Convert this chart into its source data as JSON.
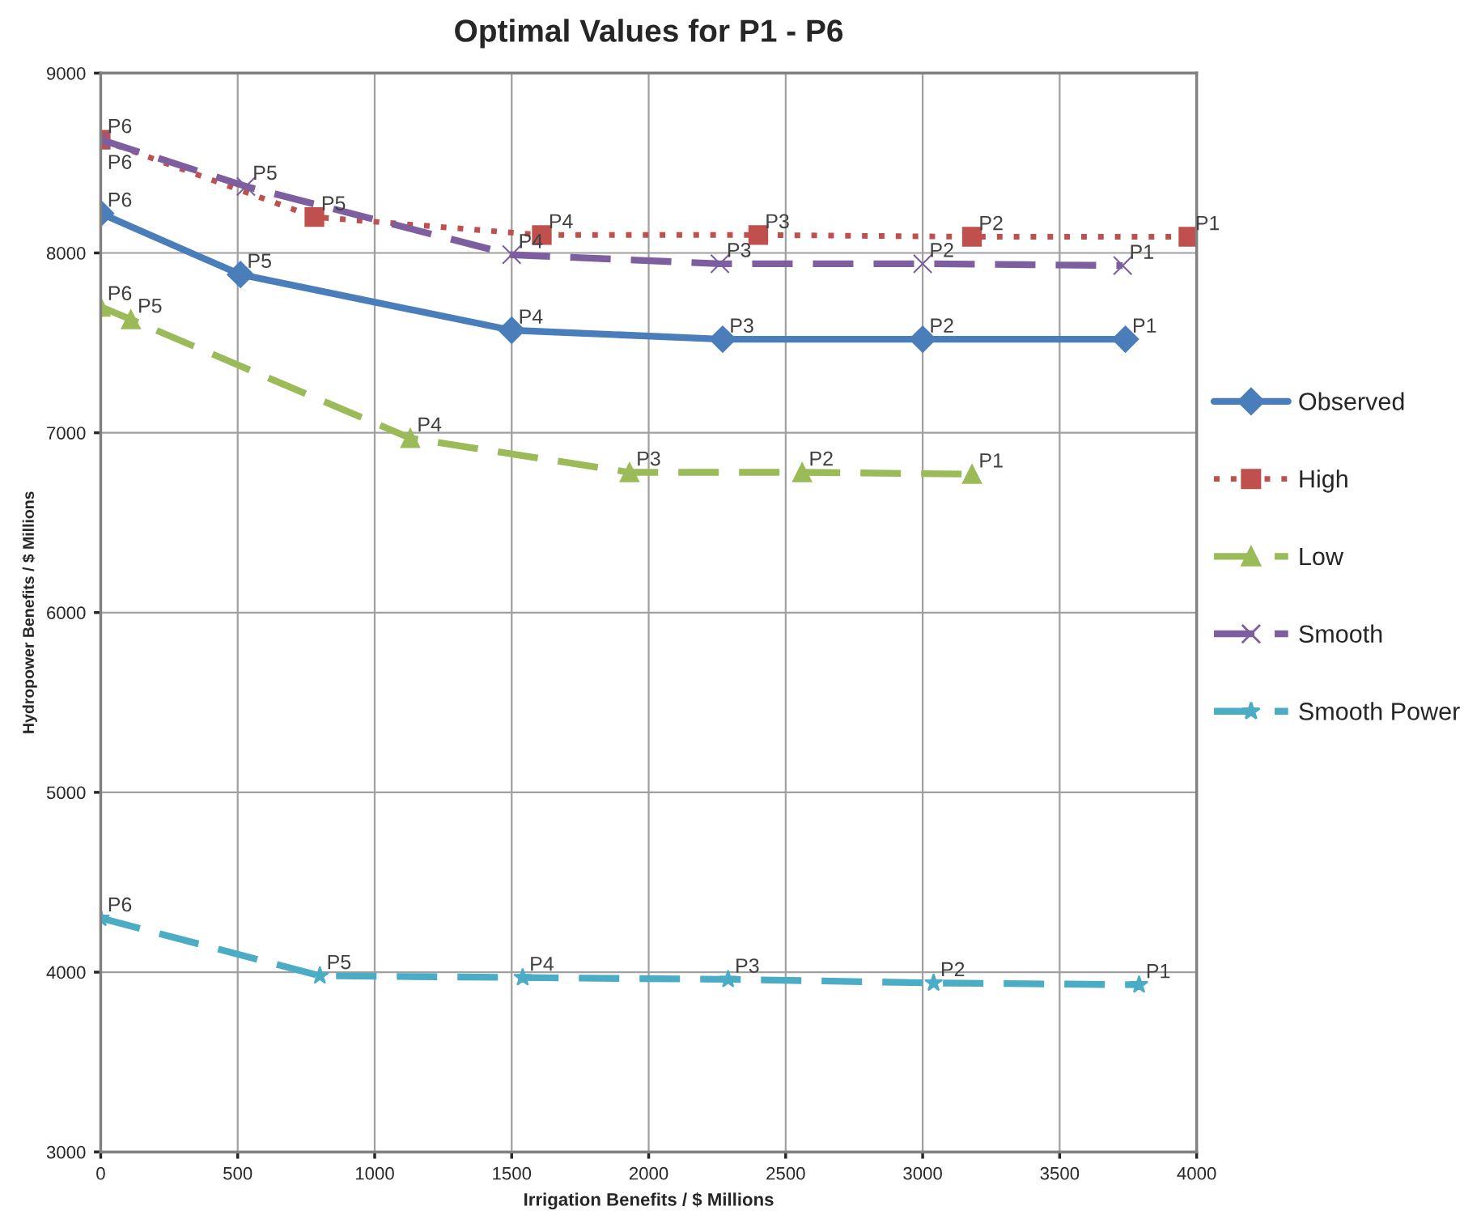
{
  "chart_data": {
    "type": "line",
    "title": "Optimal Values for P1 - P6",
    "xlabel": "Irrigation Benefits / $ Millions",
    "ylabel": "Hydropower Benefits / $ Millions",
    "xlim": [
      0,
      4000
    ],
    "xticks": [
      0,
      500,
      1000,
      1500,
      2000,
      2500,
      3000,
      3500,
      4000
    ],
    "ylim": [
      3000,
      9000
    ],
    "yticks": [
      3000,
      4000,
      5000,
      6000,
      7000,
      8000,
      9000
    ],
    "grid": true,
    "legend": "right",
    "series": [
      {
        "name": "Observed",
        "color": "#4a7ebb",
        "marker": "diamond",
        "line_style": "solid",
        "x": [
          0,
          510,
          1500,
          2270,
          3000,
          3740
        ],
        "values": [
          8220,
          7880,
          7570,
          7520,
          7520,
          7520
        ]
      },
      {
        "name": "High",
        "color": "#c0504d",
        "marker": "square",
        "line_style": "dotted",
        "x": [
          0,
          780,
          1610,
          2400,
          3180,
          3970
        ],
        "values": [
          8630,
          8200,
          8100,
          8100,
          8090,
          8090
        ]
      },
      {
        "name": "Low",
        "color": "#9bbb59",
        "marker": "triangle",
        "line_style": "dashed",
        "x": [
          0,
          110,
          1130,
          1930,
          2560,
          3180
        ],
        "values": [
          7700,
          7630,
          6970,
          6780,
          6780,
          6770
        ]
      },
      {
        "name": "Smooth",
        "color": "#7d5fa0",
        "marker": "cross",
        "line_style": "dashed",
        "x": [
          0,
          530,
          1500,
          2260,
          3000,
          3730
        ],
        "values": [
          8630,
          8370,
          7990,
          7940,
          7940,
          7930
        ]
      },
      {
        "name": "Smooth Power",
        "color": "#4bacc6",
        "marker": "star",
        "line_style": "dashed",
        "x": [
          0,
          800,
          1540,
          2290,
          3040,
          3790
        ],
        "values": [
          4300,
          3980,
          3970,
          3960,
          3940,
          3930
        ]
      }
    ],
    "annotations": [
      {
        "text": "P6",
        "x": 0,
        "y": 8220
      },
      {
        "text": "P5",
        "x": 510,
        "y": 7880
      },
      {
        "text": "P4",
        "x": 1500,
        "y": 7570
      },
      {
        "text": "P3",
        "x": 2270,
        "y": 7520
      },
      {
        "text": "P2",
        "x": 3000,
        "y": 7520
      },
      {
        "text": "P1",
        "x": 3740,
        "y": 7520
      },
      {
        "text": "P6",
        "x": 0,
        "y": 8630
      },
      {
        "text": "P5",
        "x": 780,
        "y": 8200
      },
      {
        "text": "P4",
        "x": 1610,
        "y": 8100
      },
      {
        "text": "P3",
        "x": 2400,
        "y": 8100
      },
      {
        "text": "P2",
        "x": 3180,
        "y": 8090
      },
      {
        "text": "P1",
        "x": 3970,
        "y": 8090
      },
      {
        "text": "P6",
        "x": 0,
        "y": 7700
      },
      {
        "text": "P5",
        "x": 110,
        "y": 7630
      },
      {
        "text": "P4",
        "x": 1130,
        "y": 6970
      },
      {
        "text": "P3",
        "x": 1930,
        "y": 6780
      },
      {
        "text": "P2",
        "x": 2560,
        "y": 6780
      },
      {
        "text": "P1",
        "x": 3180,
        "y": 6770
      },
      {
        "text": "P6",
        "x": 0,
        "y": 8630
      },
      {
        "text": "P5",
        "x": 530,
        "y": 8370
      },
      {
        "text": "P4",
        "x": 1500,
        "y": 7990
      },
      {
        "text": "P3",
        "x": 2260,
        "y": 7940
      },
      {
        "text": "P2",
        "x": 3000,
        "y": 7940
      },
      {
        "text": "P1",
        "x": 3730,
        "y": 7930
      },
      {
        "text": "P6",
        "x": 0,
        "y": 4300
      },
      {
        "text": "P5",
        "x": 800,
        "y": 3980
      },
      {
        "text": "P4",
        "x": 1540,
        "y": 3970
      },
      {
        "text": "P3",
        "x": 2290,
        "y": 3960
      },
      {
        "text": "P2",
        "x": 3040,
        "y": 3940
      },
      {
        "text": "P1",
        "x": 3790,
        "y": 3930
      }
    ]
  }
}
